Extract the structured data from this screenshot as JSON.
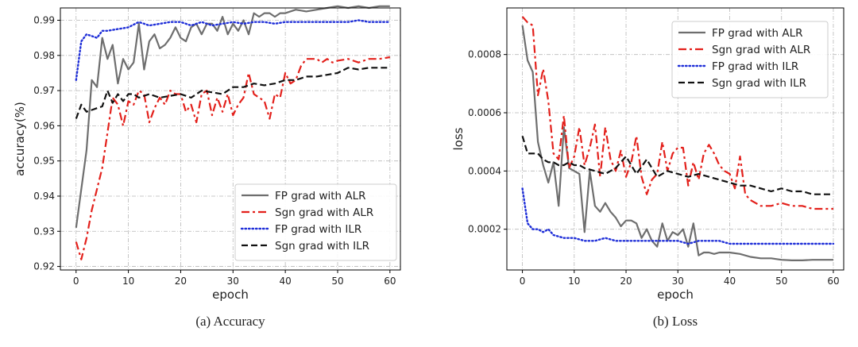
{
  "chart_data": [
    {
      "type": "line",
      "caption": "(a) Accuracy",
      "xlabel": "epoch",
      "ylabel": "accuracy(%)",
      "xlim": [
        -3,
        62
      ],
      "ylim": [
        0.919,
        0.9935
      ],
      "xticks": [
        "0",
        "10",
        "20",
        "30",
        "40",
        "50",
        "60"
      ],
      "yticks": [
        "0.92",
        "0.93",
        "0.94",
        "0.95",
        "0.96",
        "0.97",
        "0.98",
        "0.99"
      ],
      "grid": true,
      "legend_position": "lower-right",
      "series": [
        {
          "name": "FP grad with ALR",
          "color": "#6e6e6e",
          "dash": "solid",
          "x": [
            0,
            2,
            3,
            4,
            5,
            6,
            7,
            8,
            9,
            10,
            11,
            12,
            13,
            14,
            15,
            16,
            17,
            18,
            19,
            20,
            21,
            22,
            23,
            24,
            25,
            26,
            27,
            28,
            29,
            30,
            31,
            32,
            33,
            34,
            35,
            36,
            37,
            38,
            39,
            40,
            42,
            44,
            46,
            48,
            50,
            52,
            54,
            56,
            58,
            60
          ],
          "y": [
            0.931,
            0.953,
            0.973,
            0.971,
            0.985,
            0.979,
            0.983,
            0.972,
            0.979,
            0.976,
            0.978,
            0.989,
            0.976,
            0.984,
            0.986,
            0.982,
            0.983,
            0.985,
            0.988,
            0.985,
            0.984,
            0.988,
            0.989,
            0.986,
            0.989,
            0.989,
            0.987,
            0.991,
            0.986,
            0.989,
            0.987,
            0.99,
            0.986,
            0.992,
            0.991,
            0.992,
            0.992,
            0.991,
            0.992,
            0.992,
            0.993,
            0.9925,
            0.993,
            0.9935,
            0.994,
            0.9935,
            0.994,
            0.9935,
            0.994,
            0.994
          ]
        },
        {
          "name": "Sgn grad with ALR",
          "color": "#e3201b",
          "dash": "dashdot",
          "x": [
            0,
            1,
            2,
            3,
            4,
            5,
            6,
            7,
            8,
            9,
            10,
            11,
            12,
            13,
            14,
            15,
            16,
            17,
            18,
            19,
            20,
            21,
            22,
            23,
            24,
            25,
            26,
            27,
            28,
            29,
            30,
            31,
            32,
            33,
            34,
            35,
            36,
            37,
            38,
            39,
            40,
            41,
            42,
            43,
            44,
            45,
            46,
            47,
            48,
            49,
            50,
            52,
            54,
            56,
            58,
            60
          ],
          "y": [
            0.927,
            0.922,
            0.928,
            0.936,
            0.942,
            0.948,
            0.958,
            0.968,
            0.966,
            0.96,
            0.967,
            0.966,
            0.97,
            0.969,
            0.961,
            0.965,
            0.968,
            0.966,
            0.97,
            0.969,
            0.969,
            0.964,
            0.966,
            0.961,
            0.969,
            0.97,
            0.963,
            0.968,
            0.964,
            0.969,
            0.963,
            0.966,
            0.968,
            0.975,
            0.969,
            0.968,
            0.967,
            0.962,
            0.969,
            0.968,
            0.975,
            0.972,
            0.973,
            0.977,
            0.979,
            0.979,
            0.979,
            0.978,
            0.979,
            0.978,
            0.9785,
            0.979,
            0.978,
            0.979,
            0.979,
            0.9795
          ]
        },
        {
          "name": "FP grad with ILR",
          "color": "#1f2fd8",
          "dash": "dotted",
          "x": [
            0,
            1,
            2,
            3,
            4,
            5,
            6,
            8,
            10,
            12,
            14,
            16,
            18,
            20,
            22,
            24,
            26,
            28,
            30,
            32,
            34,
            36,
            38,
            40,
            42,
            44,
            46,
            48,
            50,
            52,
            54,
            56,
            58,
            60
          ],
          "y": [
            0.973,
            0.984,
            0.986,
            0.9855,
            0.985,
            0.987,
            0.987,
            0.9875,
            0.988,
            0.9895,
            0.9885,
            0.989,
            0.9895,
            0.9895,
            0.9885,
            0.9895,
            0.9885,
            0.989,
            0.9895,
            0.989,
            0.9895,
            0.9895,
            0.989,
            0.9895,
            0.9895,
            0.9895,
            0.9895,
            0.9895,
            0.9895,
            0.9895,
            0.99,
            0.9895,
            0.9895,
            0.9895
          ]
        },
        {
          "name": "Sgn grad with ILR",
          "color": "#111111",
          "dash": "dashed",
          "x": [
            0,
            1,
            2,
            3,
            4,
            5,
            6,
            7,
            8,
            9,
            10,
            11,
            12,
            14,
            16,
            18,
            20,
            22,
            24,
            26,
            28,
            30,
            32,
            34,
            36,
            38,
            40,
            42,
            44,
            46,
            48,
            50,
            52,
            54,
            56,
            58,
            60
          ],
          "y": [
            0.962,
            0.966,
            0.964,
            0.9645,
            0.965,
            0.9655,
            0.97,
            0.9665,
            0.969,
            0.967,
            0.969,
            0.969,
            0.968,
            0.969,
            0.968,
            0.9685,
            0.969,
            0.968,
            0.97,
            0.9695,
            0.969,
            0.971,
            0.971,
            0.972,
            0.9715,
            0.972,
            0.973,
            0.973,
            0.974,
            0.974,
            0.9745,
            0.975,
            0.9765,
            0.976,
            0.9765,
            0.9765,
            0.9765
          ]
        }
      ]
    },
    {
      "type": "line",
      "caption": "(b) Loss",
      "xlabel": "epoch",
      "ylabel": "loss",
      "xlim": [
        -3,
        62
      ],
      "ylim": [
        6e-05,
        0.00096
      ],
      "xticks": [
        "0",
        "10",
        "20",
        "30",
        "40",
        "50",
        "60"
      ],
      "yticks": [
        "0.0002",
        "0.0004",
        "0.0006",
        "0.0008"
      ],
      "grid": true,
      "legend_position": "upper-right",
      "series": [
        {
          "name": "FP grad with ALR",
          "color": "#6e6e6e",
          "dash": "solid",
          "x": [
            0,
            1,
            2,
            3,
            4,
            5,
            6,
            7,
            8,
            9,
            10,
            11,
            12,
            13,
            14,
            15,
            16,
            17,
            18,
            19,
            20,
            21,
            22,
            23,
            24,
            25,
            26,
            27,
            28,
            29,
            30,
            31,
            32,
            33,
            34,
            35,
            36,
            37,
            38,
            39,
            40,
            42,
            44,
            46,
            48,
            50,
            52,
            54,
            56,
            58,
            60
          ],
          "y": [
            0.0009,
            0.00078,
            0.00074,
            0.0005,
            0.00042,
            0.00036,
            0.00043,
            0.00028,
            0.00055,
            0.00041,
            0.0004,
            0.00039,
            0.00019,
            0.0004,
            0.00028,
            0.00026,
            0.00029,
            0.00026,
            0.00024,
            0.00021,
            0.00023,
            0.00023,
            0.00022,
            0.00017,
            0.0002,
            0.00016,
            0.00014,
            0.00022,
            0.00016,
            0.00019,
            0.00018,
            0.0002,
            0.00014,
            0.00022,
            0.00011,
            0.00012,
            0.00012,
            0.000115,
            0.00012,
            0.00012,
            0.00012,
            0.000115,
            0.000105,
            0.0001,
            0.0001,
            9.5e-05,
            9.3e-05,
            9.3e-05,
            9.5e-05,
            9.5e-05,
            9.5e-05
          ]
        },
        {
          "name": "Sgn grad with ALR",
          "color": "#e3201b",
          "dash": "dashdot",
          "x": [
            0,
            1,
            2,
            3,
            4,
            5,
            6,
            7,
            8,
            9,
            10,
            11,
            12,
            13,
            14,
            15,
            16,
            17,
            18,
            19,
            20,
            21,
            22,
            23,
            24,
            25,
            26,
            27,
            28,
            29,
            30,
            31,
            32,
            33,
            34,
            35,
            36,
            37,
            38,
            39,
            40,
            41,
            42,
            43,
            44,
            46,
            48,
            50,
            52,
            54,
            56,
            58,
            60
          ],
          "y": [
            0.00093,
            0.00091,
            0.0009,
            0.00066,
            0.00075,
            0.00064,
            0.00046,
            0.00044,
            0.00059,
            0.00041,
            0.00045,
            0.00055,
            0.00042,
            0.00048,
            0.00056,
            0.00038,
            0.00055,
            0.00044,
            0.0004,
            0.00047,
            0.00038,
            0.00043,
            0.00052,
            0.00038,
            0.00032,
            0.00037,
            0.00039,
            0.0005,
            0.0004,
            0.00046,
            0.00048,
            0.00048,
            0.00035,
            0.00043,
            0.00037,
            0.00046,
            0.00049,
            0.00046,
            0.00042,
            0.0004,
            0.00039,
            0.00034,
            0.00045,
            0.00032,
            0.0003,
            0.00028,
            0.00028,
            0.00029,
            0.00028,
            0.00028,
            0.00027,
            0.00027,
            0.00027
          ]
        },
        {
          "name": "FP grad with ILR",
          "color": "#1f2fd8",
          "dash": "dotted",
          "x": [
            0,
            1,
            2,
            3,
            4,
            5,
            6,
            8,
            10,
            12,
            14,
            16,
            18,
            20,
            22,
            24,
            26,
            28,
            30,
            32,
            34,
            36,
            38,
            40,
            42,
            44,
            46,
            48,
            50,
            52,
            54,
            56,
            58,
            60
          ],
          "y": [
            0.00034,
            0.00022,
            0.0002,
            0.0002,
            0.00019,
            0.0002,
            0.00018,
            0.00017,
            0.00017,
            0.00016,
            0.00016,
            0.00017,
            0.00016,
            0.00016,
            0.00016,
            0.00016,
            0.00016,
            0.00016,
            0.00016,
            0.00015,
            0.00016,
            0.00016,
            0.00016,
            0.00015,
            0.00015,
            0.00015,
            0.00015,
            0.00015,
            0.00015,
            0.00015,
            0.00015,
            0.00015,
            0.00015,
            0.00015
          ]
        },
        {
          "name": "Sgn grad with ILR",
          "color": "#111111",
          "dash": "dashed",
          "x": [
            0,
            1,
            2,
            3,
            4,
            5,
            6,
            7,
            8,
            9,
            10,
            11,
            12,
            14,
            16,
            18,
            20,
            22,
            24,
            26,
            28,
            30,
            32,
            34,
            36,
            38,
            40,
            42,
            44,
            46,
            48,
            50,
            52,
            54,
            56,
            58,
            60
          ],
          "y": [
            0.00052,
            0.00046,
            0.00046,
            0.00046,
            0.00044,
            0.00043,
            0.00043,
            0.00042,
            0.00042,
            0.00043,
            0.00042,
            0.00042,
            0.00041,
            0.0004,
            0.00039,
            0.00041,
            0.00045,
            0.00039,
            0.00044,
            0.00038,
            0.0004,
            0.00039,
            0.00038,
            0.00039,
            0.00038,
            0.00037,
            0.00036,
            0.00035,
            0.00035,
            0.00034,
            0.00033,
            0.00034,
            0.00033,
            0.00033,
            0.00032,
            0.00032,
            0.00032
          ]
        }
      ]
    }
  ]
}
